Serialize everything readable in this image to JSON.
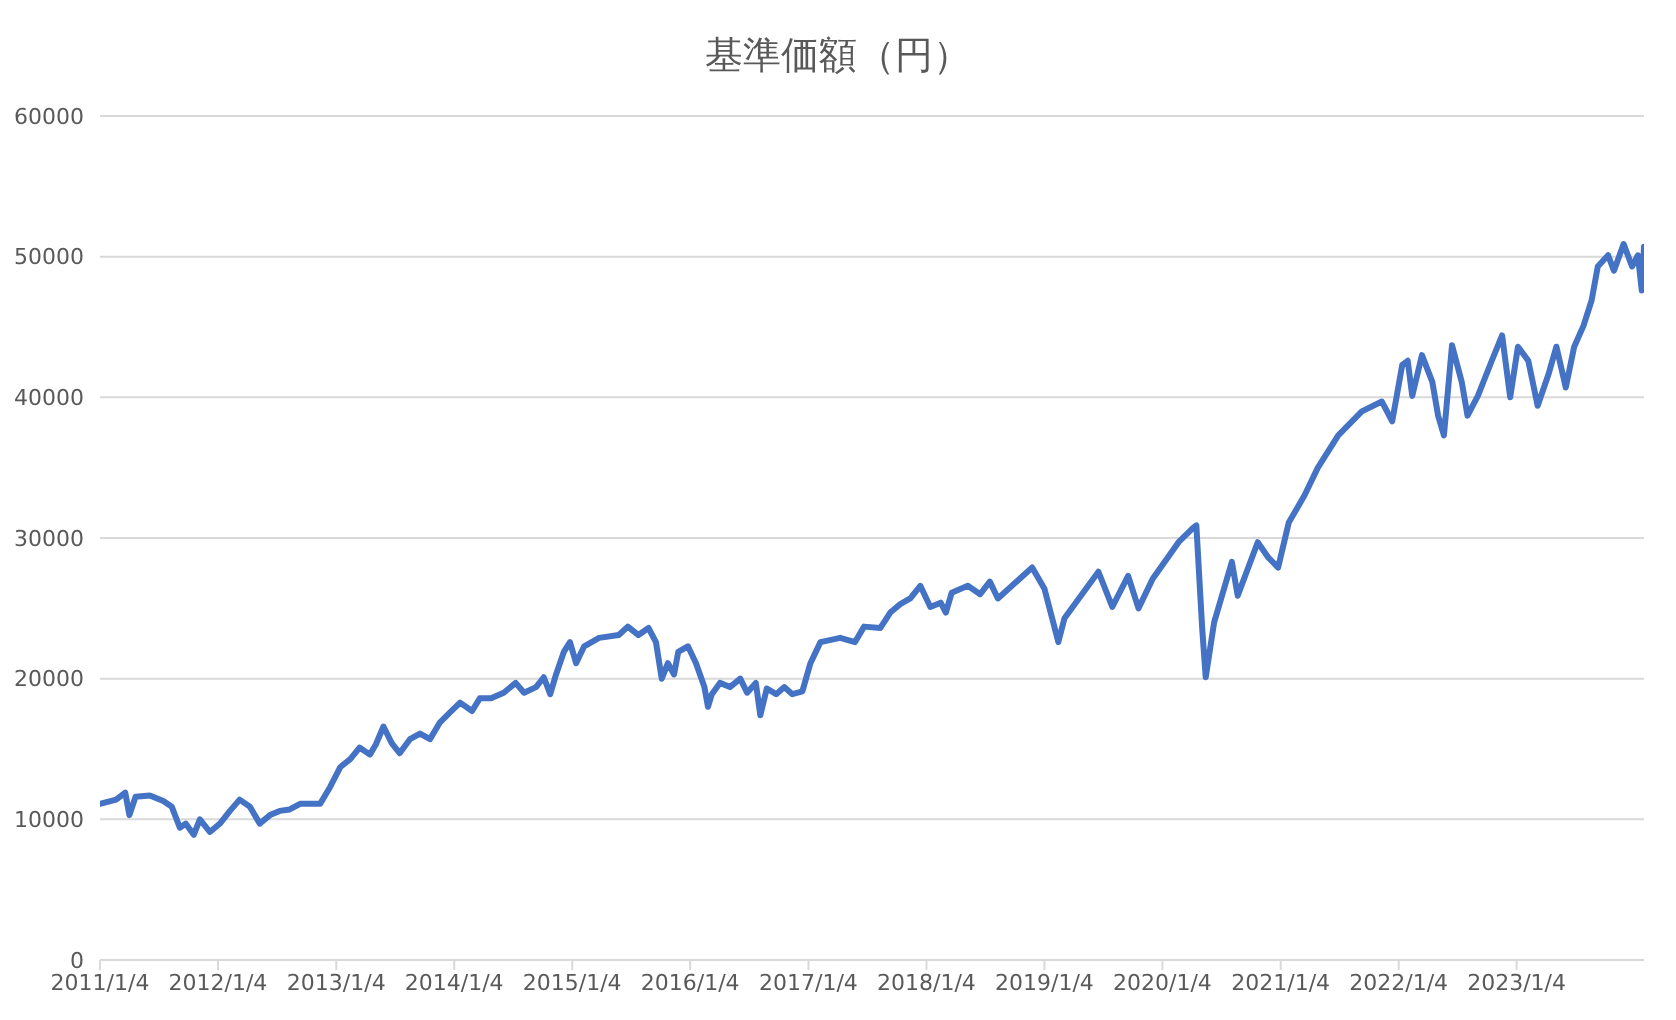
{
  "chart_data": {
    "type": "line",
    "title": "基準価額（円）",
    "x": [
      "2011-01-04",
      "2011-02-23",
      "2011-03-23",
      "2011-04-05",
      "2011-04-24",
      "2011-06-07",
      "2011-07-19",
      "2011-08-14",
      "2011-09-08",
      "2011-09-26",
      "2011-10-21",
      "2011-11-09",
      "2011-12-10",
      "2012-01-10",
      "2012-02-10",
      "2012-03-11",
      "2012-04-12",
      "2012-05-12",
      "2012-06-13",
      "2012-07-13",
      "2012-08-13",
      "2012-09-14",
      "2012-11-15",
      "2012-12-16",
      "2013-01-16",
      "2013-02-17",
      "2013-03-17",
      "2013-04-18",
      "2013-05-06",
      "2013-05-30",
      "2013-06-25",
      "2013-07-19",
      "2013-08-20",
      "2013-09-20",
      "2013-10-21",
      "2013-11-21",
      "2013-12-22",
      "2014-01-22",
      "2014-02-28",
      "2014-03-24",
      "2014-04-28",
      "2014-06-06",
      "2014-07-13",
      "2014-08-08",
      "2014-09-14",
      "2014-10-08",
      "2014-10-28",
      "2014-11-15",
      "2014-12-09",
      "2014-12-28",
      "2015-01-16",
      "2015-02-10",
      "2015-03-28",
      "2015-05-28",
      "2015-06-25",
      "2015-07-28",
      "2015-08-28",
      "2015-09-20",
      "2015-10-08",
      "2015-10-27",
      "2015-11-15",
      "2015-11-28",
      "2015-12-28",
      "2016-01-22",
      "2016-02-17",
      "2016-02-28",
      "2016-03-11",
      "2016-04-05",
      "2016-05-06",
      "2016-06-07",
      "2016-06-28",
      "2016-07-25",
      "2016-08-08",
      "2016-08-28",
      "2016-09-26",
      "2016-10-21",
      "2016-11-15",
      "2016-12-16",
      "2017-01-10",
      "2017-02-10",
      "2017-04-12",
      "2017-05-28",
      "2017-06-25",
      "2017-08-14",
      "2017-09-14",
      "2017-10-15",
      "2017-11-15",
      "2017-12-16",
      "2018-01-16",
      "2018-02-17",
      "2018-03-05",
      "2018-03-23",
      "2018-05-12",
      "2018-06-19",
      "2018-07-19",
      "2018-08-13",
      "2018-11-27",
      "2019-01-04",
      "2019-02-16",
      "2019-03-07",
      "2019-06-20",
      "2019-08-02",
      "2019-09-20",
      "2019-10-22",
      "2019-12-05",
      "2020-02-23",
      "2020-04-07",
      "2020-04-18",
      "2020-05-06",
      "2020-05-17",
      "2020-06-12",
      "2020-08-06",
      "2020-08-24",
      "2020-10-25",
      "2020-11-27",
      "2020-12-27",
      "2021-01-29",
      "2021-03-18",
      "2021-04-29",
      "2021-07-01",
      "2021-09-12",
      "2021-11-13",
      "2021-12-15",
      "2022-01-15",
      "2022-02-01",
      "2022-02-15",
      "2022-03-17",
      "2022-04-18",
      "2022-05-06",
      "2022-05-24",
      "2022-06-18",
      "2022-07-18",
      "2022-08-05",
      "2022-09-06",
      "2022-10-19",
      "2022-11-20",
      "2022-12-15",
      "2023-01-08",
      "2023-02-09",
      "2023-03-10",
      "2023-04-12",
      "2023-05-07",
      "2023-06-05",
      "2023-07-01",
      "2023-07-30",
      "2023-08-24",
      "2023-09-12",
      "2023-10-14",
      "2023-11-01",
      "2023-12-01",
      "2023-12-27",
      "2024-01-14",
      "2024-01-26",
      "2024-02-02"
    ],
    "series": [
      {
        "color": "#4472c4",
        "values": [
          11100,
          11400,
          11900,
          10300,
          11600,
          11700,
          11300,
          10900,
          9400,
          9700,
          8900,
          10000,
          9100,
          9700,
          10600,
          11400,
          10900,
          9700,
          10300,
          10600,
          10700,
          11100,
          11100,
          12300,
          13700,
          14300,
          15100,
          14600,
          15300,
          16600,
          15400,
          14700,
          15700,
          16100,
          15700,
          16900,
          17600,
          18300,
          17700,
          18600,
          18600,
          19000,
          19700,
          19000,
          19400,
          20100,
          18900,
          20300,
          21900,
          22600,
          21100,
          22300,
          22900,
          23100,
          23700,
          23100,
          23600,
          22600,
          20000,
          21100,
          20300,
          21900,
          22300,
          21100,
          19400,
          18000,
          18900,
          19700,
          19400,
          20000,
          19000,
          19700,
          17400,
          19300,
          18900,
          19400,
          18900,
          19100,
          21100,
          22600,
          22900,
          22600,
          23700,
          23600,
          24700,
          25300,
          25700,
          26600,
          25100,
          25400,
          24700,
          26100,
          26600,
          26000,
          26900,
          25700,
          27900,
          26400,
          22600,
          24300,
          27600,
          25100,
          27300,
          25000,
          27100,
          29700,
          30700,
          30900,
          23600,
          20100,
          24000,
          28300,
          25900,
          29700,
          28600,
          27900,
          31100,
          33000,
          35000,
          37300,
          39000,
          39700,
          38300,
          42300,
          42600,
          40100,
          43000,
          41100,
          38700,
          37300,
          43700,
          41100,
          38700,
          40100,
          42600,
          44400,
          40000,
          43600,
          42600,
          39400,
          41600,
          43600,
          40700,
          43600,
          45100,
          46900,
          49300,
          50100,
          49000,
          50900,
          49300,
          50100,
          47600,
          50700
        ]
      }
    ],
    "xlim": [
      "2011-01-04",
      "2024-02-02"
    ],
    "xticks": [
      {
        "value": "2011-01-04",
        "label": "2011/1/4"
      },
      {
        "value": "2012-01-04",
        "label": "2012/1/4"
      },
      {
        "value": "2013-01-04",
        "label": "2013/1/4"
      },
      {
        "value": "2014-01-04",
        "label": "2014/1/4"
      },
      {
        "value": "2015-01-04",
        "label": "2015/1/4"
      },
      {
        "value": "2016-01-04",
        "label": "2016/1/4"
      },
      {
        "value": "2017-01-04",
        "label": "2017/1/4"
      },
      {
        "value": "2018-01-04",
        "label": "2018/1/4"
      },
      {
        "value": "2019-01-04",
        "label": "2019/1/4"
      },
      {
        "value": "2020-01-04",
        "label": "2020/1/4"
      },
      {
        "value": "2021-01-04",
        "label": "2021/1/4"
      },
      {
        "value": "2022-01-04",
        "label": "2022/1/4"
      },
      {
        "value": "2023-01-04",
        "label": "2023/1/4"
      }
    ],
    "ylim": [
      0,
      60000
    ],
    "yticks": [
      0,
      10000,
      20000,
      30000,
      40000,
      50000,
      60000
    ],
    "grid": "y",
    "legend": false,
    "marker": "none",
    "line_style": "solid"
  }
}
